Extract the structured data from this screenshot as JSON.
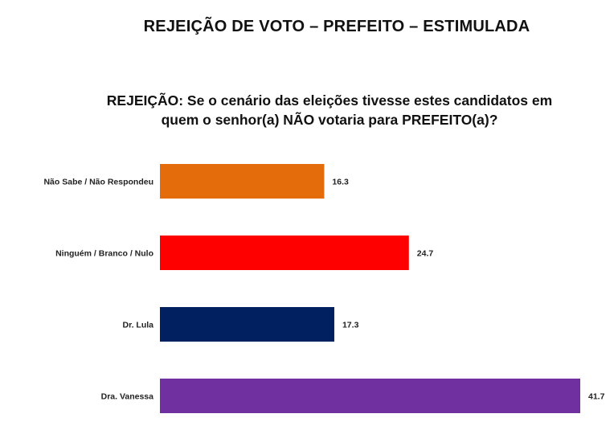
{
  "header": {
    "title": "REJEIÇÃO DE VOTO – PREFEITO – ESTIMULADA",
    "question_line1": "REJEIÇÃO: Se o cenário das eleições tivesse estes candidatos em",
    "question_line2": "quem o senhor(a) NÃO votaria para PREFEITO(a)?"
  },
  "chart_data": {
    "type": "bar",
    "orientation": "horizontal",
    "categories": [
      "Não Sabe / Não Respondeu",
      "Ninguém / Branco / Nulo",
      "Dr. Lula",
      "Dra. Vanessa"
    ],
    "values": [
      16.3,
      24.7,
      17.3,
      41.7
    ],
    "value_labels": [
      "16.3",
      "24.7",
      "17.3",
      "41.7"
    ],
    "colors": [
      "#E46C0A",
      "#FF0000",
      "#002060",
      "#7030A0"
    ],
    "grid": false,
    "legend": "none"
  }
}
